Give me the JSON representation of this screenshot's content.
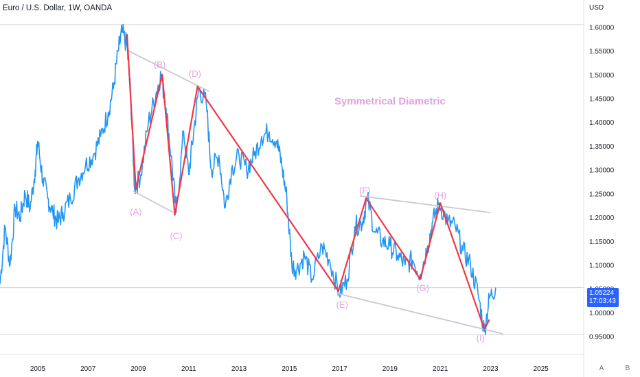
{
  "header": {
    "title": "Euro / U.S. Dollar, 1W, OANDA",
    "currency": "USD"
  },
  "price_tag": {
    "price": "1.05224",
    "countdown": "17:03:43",
    "color": "#2962ff"
  },
  "scale_buttons": {
    "auto": "A",
    "log": "B"
  },
  "colors": {
    "price_line": "#2196f3",
    "wave_line": "#f23645",
    "channel_line": "#c9c9cf",
    "wave_label": "#e1a1dc",
    "last_price_line": "#b9d7f8",
    "grid_line": "#e0e3eb"
  },
  "chart_data": {
    "type": "line",
    "title": "Euro / U.S. Dollar, 1W, OANDA",
    "xlabel": "",
    "ylabel": "USD",
    "xlim": [
      2003.5,
      2026.7
    ],
    "ylim": [
      0.912,
      1.625
    ],
    "x_ticks": [
      "2005",
      "2007",
      "2009",
      "2011",
      "2013",
      "2015",
      "2017",
      "2019",
      "2021",
      "2023",
      "2025"
    ],
    "y_ticks": [
      "1.60000",
      "1.55000",
      "1.50000",
      "1.45000",
      "1.40000",
      "1.35000",
      "1.30000",
      "1.25000",
      "1.20000",
      "1.15000",
      "1.10000",
      "1.05000",
      "1.00000",
      "0.95000"
    ],
    "horizontal_lines": [
      1.605,
      0.953
    ],
    "last_price": 1.05224,
    "series": [
      {
        "values": [
          [
            2003.5,
            1.06
          ],
          [
            2003.7,
            1.18
          ],
          [
            2003.9,
            1.1
          ],
          [
            2004.1,
            1.22
          ],
          [
            2004.3,
            1.2
          ],
          [
            2004.5,
            1.25
          ],
          [
            2004.7,
            1.22
          ],
          [
            2004.9,
            1.3
          ],
          [
            2005.0,
            1.36
          ],
          [
            2005.2,
            1.28
          ],
          [
            2005.4,
            1.24
          ],
          [
            2005.6,
            1.21
          ],
          [
            2005.8,
            1.19
          ],
          [
            2006.0,
            1.21
          ],
          [
            2006.3,
            1.24
          ],
          [
            2006.6,
            1.28
          ],
          [
            2006.9,
            1.31
          ],
          [
            2007.2,
            1.33
          ],
          [
            2007.5,
            1.37
          ],
          [
            2007.8,
            1.42
          ],
          [
            2008.0,
            1.47
          ],
          [
            2008.2,
            1.55
          ],
          [
            2008.35,
            1.59
          ],
          [
            2008.55,
            1.56
          ],
          [
            2008.7,
            1.45
          ],
          [
            2008.85,
            1.26
          ],
          [
            2009.1,
            1.29
          ],
          [
            2009.4,
            1.4
          ],
          [
            2009.7,
            1.46
          ],
          [
            2009.9,
            1.5
          ],
          [
            2010.1,
            1.43
          ],
          [
            2010.3,
            1.33
          ],
          [
            2010.5,
            1.21
          ],
          [
            2010.8,
            1.38
          ],
          [
            2011.0,
            1.29
          ],
          [
            2011.2,
            1.38
          ],
          [
            2011.4,
            1.47
          ],
          [
            2011.7,
            1.44
          ],
          [
            2011.9,
            1.3
          ],
          [
            2012.2,
            1.33
          ],
          [
            2012.45,
            1.22
          ],
          [
            2012.7,
            1.3
          ],
          [
            2013.0,
            1.33
          ],
          [
            2013.3,
            1.3
          ],
          [
            2013.6,
            1.33
          ],
          [
            2013.9,
            1.37
          ],
          [
            2014.2,
            1.38
          ],
          [
            2014.5,
            1.36
          ],
          [
            2014.7,
            1.31
          ],
          [
            2014.9,
            1.24
          ],
          [
            2015.1,
            1.1
          ],
          [
            2015.3,
            1.09
          ],
          [
            2015.6,
            1.12
          ],
          [
            2015.9,
            1.07
          ],
          [
            2016.3,
            1.14
          ],
          [
            2016.6,
            1.11
          ],
          [
            2016.98,
            1.04
          ],
          [
            2017.3,
            1.07
          ],
          [
            2017.6,
            1.18
          ],
          [
            2017.9,
            1.19
          ],
          [
            2018.1,
            1.24
          ],
          [
            2018.4,
            1.17
          ],
          [
            2018.7,
            1.15
          ],
          [
            2019.0,
            1.14
          ],
          [
            2019.3,
            1.12
          ],
          [
            2019.6,
            1.1
          ],
          [
            2019.9,
            1.11
          ],
          [
            2020.2,
            1.08
          ],
          [
            2020.5,
            1.14
          ],
          [
            2020.7,
            1.19
          ],
          [
            2020.95,
            1.23
          ],
          [
            2021.3,
            1.19
          ],
          [
            2021.6,
            1.18
          ],
          [
            2021.9,
            1.13
          ],
          [
            2022.2,
            1.1
          ],
          [
            2022.5,
            1.04
          ],
          [
            2022.75,
            0.96
          ],
          [
            2022.95,
            1.03
          ],
          [
            2023.2,
            1.05224
          ]
        ]
      }
    ],
    "waves": [
      [
        2008.55,
        1.585
      ],
      [
        2008.9,
        1.26
      ],
      [
        2009.95,
        1.5
      ],
      [
        2010.45,
        1.205
      ],
      [
        2011.35,
        1.475
      ],
      [
        2016.95,
        1.045
      ],
      [
        2018.05,
        1.24
      ],
      [
        2020.2,
        1.07
      ],
      [
        2021.0,
        1.23
      ],
      [
        2022.75,
        0.965
      ],
      [
        2022.95,
        0.985
      ]
    ],
    "channels": [
      [
        [
          2008.6,
          1.55
        ],
        [
          2011.8,
          1.465
        ]
      ],
      [
        [
          2008.8,
          1.255
        ],
        [
          2010.4,
          1.21
        ]
      ],
      [
        [
          2017.8,
          1.245
        ],
        [
          2023.0,
          1.21
        ]
      ],
      [
        [
          2016.9,
          1.04
        ],
        [
          2023.5,
          0.955
        ]
      ]
    ],
    "annotations": [
      {
        "text": "(A)",
        "x": 2008.9,
        "y": 1.21
      },
      {
        "text": "(B)",
        "x": 2009.85,
        "y": 1.52
      },
      {
        "text": "(C)",
        "x": 2010.5,
        "y": 1.16
      },
      {
        "text": "(D)",
        "x": 2011.25,
        "y": 1.5
      },
      {
        "text": "(E)",
        "x": 2017.1,
        "y": 1.015
      },
      {
        "text": "(F)",
        "x": 2018.0,
        "y": 1.255
      },
      {
        "text": "(G)",
        "x": 2020.3,
        "y": 1.05
      },
      {
        "text": "(H)",
        "x": 2021.0,
        "y": 1.245
      },
      {
        "text": "(I)",
        "x": 2022.6,
        "y": 0.945
      },
      {
        "text": "Symmetrical Diametric",
        "x": 2019.0,
        "y": 1.443
      }
    ]
  }
}
